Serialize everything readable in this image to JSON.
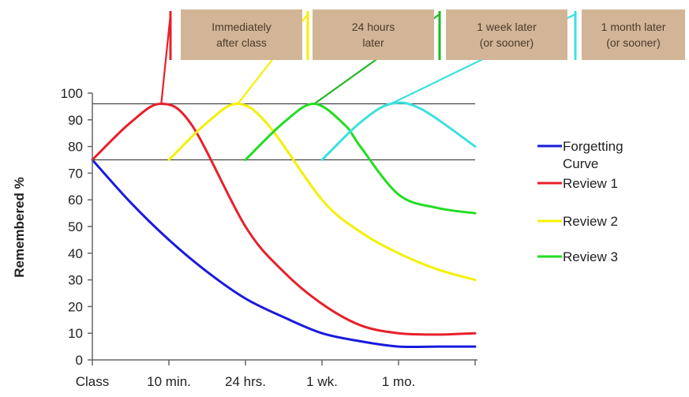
{
  "chart_data": {
    "type": "line",
    "ylabel": "Remembered %",
    "xlabel": "",
    "ylim": [
      0,
      100
    ],
    "y_ticks": [
      0,
      10,
      20,
      30,
      40,
      50,
      60,
      70,
      80,
      90,
      100
    ],
    "x_tick_labels": [
      "Class",
      "10 min.",
      "24 hrs.",
      "1 wk.",
      "1 mo.",
      ""
    ],
    "reference_lines": [
      96,
      75
    ],
    "grid": false,
    "legend_position": "right",
    "annotations": [
      {
        "text": "Immediately\nafter class",
        "color": "#e8202a"
      },
      {
        "text": "24 hours\nlater",
        "color": "#f4f000"
      },
      {
        "text": "1 week later\n(or sooner)",
        "color": "#22b822"
      },
      {
        "text": "1 month later\n(or sooner)",
        "color": "#3ce0e0"
      }
    ],
    "series": [
      {
        "name": "Forgetting Curve",
        "color": "#1a1adc",
        "x": [
          0,
          0.5,
          1,
          1.5,
          2,
          2.5,
          3,
          3.5,
          4,
          4.5,
          5
        ],
        "y": [
          75,
          59,
          45,
          33,
          23,
          16,
          10,
          7,
          5,
          5,
          5
        ]
      },
      {
        "name": "Review 1",
        "color": "#e8202a",
        "x": [
          0,
          0.5,
          0.9,
          1.3,
          2,
          2.5,
          3,
          3.5,
          4,
          4.5,
          5
        ],
        "y": [
          75,
          89,
          96,
          88,
          50,
          33,
          21,
          13,
          10,
          9.5,
          10
        ]
      },
      {
        "name": "Review 2",
        "color": "#f4f000",
        "x": [
          1,
          1.5,
          1.9,
          2.3,
          3,
          3.5,
          4,
          4.5,
          5
        ],
        "y": [
          75,
          89,
          96,
          88,
          60,
          48,
          40,
          34,
          30
        ]
      },
      {
        "name": "Review 3",
        "color": "#22dd22",
        "x": [
          2,
          2.5,
          2.9,
          3.3,
          3.5,
          4,
          4.5,
          5
        ],
        "y": [
          75,
          89,
          96,
          88,
          80,
          62,
          57,
          55
        ]
      },
      {
        "name": "",
        "color": "#3ce0e0",
        "x": [
          3,
          3.5,
          3.9,
          4.3,
          5
        ],
        "y": [
          75,
          89,
          96,
          94,
          80
        ]
      }
    ]
  }
}
